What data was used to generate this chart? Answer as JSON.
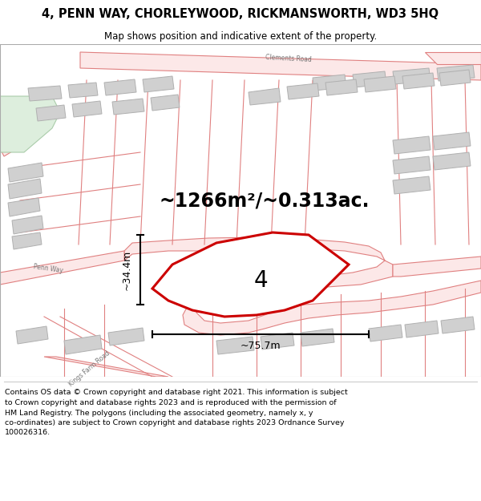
{
  "title": "4, PENN WAY, CHORLEYWOOD, RICKMANSWORTH, WD3 5HQ",
  "subtitle": "Map shows position and indicative extent of the property.",
  "area_label": "~1266m²/~0.313ac.",
  "width_label": "~75.7m",
  "height_label": "~34.4m",
  "plot_number": "4",
  "road_fill": "#fce8e8",
  "road_edge": "#e08080",
  "road_center": "#e8a0a0",
  "building_fill": "#d0d0d0",
  "building_edge": "#b0b0b0",
  "plot_fill": "#ffffff",
  "plot_edge": "#cc0000",
  "green_fill": "#ddeedd",
  "green_edge": "#aaccaa",
  "map_bg": "#ffffff",
  "annotation_color": "#111111",
  "road_label_color": "#777777",
  "footer_text": "Contains OS data © Crown copyright and database right 2021. This information is subject to Crown copyright and database rights 2023 and is reproduced with the permission of HM Land Registry. The polygons (including the associated geometry, namely x, y co-ordinates) are subject to Crown copyright and database rights 2023 Ordnance Survey 100026316."
}
